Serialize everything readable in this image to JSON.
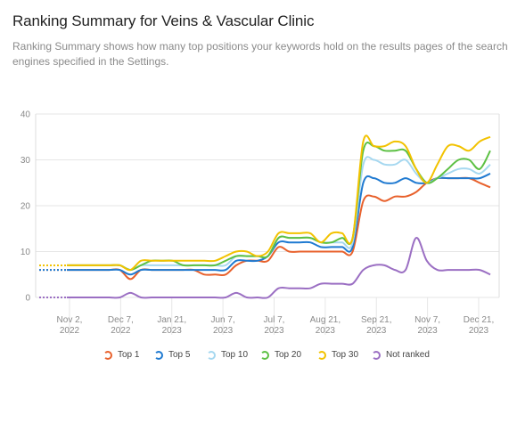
{
  "header": {
    "title": "Ranking Summary for Veins & Vascular Clinic",
    "subtitle": "Ranking Summary shows how many top positions your keywords hold on the results pages of the search engines specified in the Settings."
  },
  "chart_data": {
    "type": "line",
    "title": "Ranking Summary for Veins & Vascular Clinic",
    "xlabel": "",
    "ylabel": "",
    "ylim": [
      0,
      40
    ],
    "yticks": [
      0,
      10,
      20,
      30,
      40
    ],
    "grid": "horizontal",
    "legend_position": "bottom",
    "x_tick_labels": [
      {
        "l1": "Nov 2,",
        "l2": "2022"
      },
      {
        "l1": "Dec 7,",
        "l2": "2022"
      },
      {
        "l1": "Jan 21,",
        "l2": "2023"
      },
      {
        "l1": "Jun 7,",
        "l2": "2023"
      },
      {
        "l1": "Jul 7,",
        "l2": "2023"
      },
      {
        "l1": "Aug 21,",
        "l2": "2023"
      },
      {
        "l1": "Sep 21,",
        "l2": "2023"
      },
      {
        "l1": "Nov 7,",
        "l2": "2023"
      },
      {
        "l1": "Dec 21,",
        "l2": "2023"
      }
    ],
    "series": [
      {
        "name": "Top 1",
        "color": "#e8612c",
        "values": [
          6,
          6,
          6,
          6,
          6,
          6,
          4,
          6,
          6,
          6,
          6,
          6,
          6,
          5,
          5,
          5,
          7,
          8,
          8,
          8,
          11,
          10,
          10,
          10,
          10,
          10,
          10,
          10,
          21,
          22,
          21,
          22,
          22,
          23,
          25,
          26,
          26,
          26,
          26,
          25,
          24
        ]
      },
      {
        "name": "Top 5",
        "color": "#1f7ad1",
        "values": [
          6,
          6,
          6,
          6,
          6,
          6,
          5,
          6,
          6,
          6,
          6,
          6,
          6,
          6,
          6,
          6,
          8,
          8,
          8,
          9,
          12,
          12,
          12,
          12,
          11,
          11,
          11,
          11,
          25,
          26,
          25,
          25,
          26,
          25,
          25,
          26,
          26,
          26,
          26,
          26,
          27
        ]
      },
      {
        "name": "Top 10",
        "color": "#a6d8f0",
        "values": [
          7,
          7,
          7,
          7,
          7,
          7,
          6,
          7,
          7,
          7,
          7,
          7,
          7,
          7,
          7,
          7,
          9,
          9,
          9,
          9,
          13,
          13,
          13,
          13,
          12,
          12,
          12,
          12,
          29,
          30,
          29,
          29,
          30,
          27,
          25,
          26,
          27,
          28,
          28,
          27,
          29
        ]
      },
      {
        "name": "Top 20",
        "color": "#5cc043",
        "values": [
          7,
          7,
          7,
          7,
          7,
          7,
          6,
          7,
          8,
          8,
          8,
          7,
          7,
          7,
          7,
          8,
          9,
          9,
          9,
          9,
          13,
          13,
          13,
          13,
          12,
          12,
          13,
          13,
          32,
          33,
          32,
          32,
          32,
          28,
          25,
          26,
          28,
          30,
          30,
          28,
          32
        ]
      },
      {
        "name": "Top 30",
        "color": "#f2c200",
        "values": [
          7,
          7,
          7,
          7,
          7,
          7,
          6,
          8,
          8,
          8,
          8,
          8,
          8,
          8,
          8,
          9,
          10,
          10,
          9,
          10,
          14,
          14,
          14,
          14,
          12,
          14,
          14,
          13,
          34,
          33,
          33,
          34,
          33,
          28,
          25,
          29,
          33,
          33,
          32,
          34,
          35
        ]
      },
      {
        "name": "Not ranked",
        "color": "#9b6fc3",
        "values": [
          0,
          0,
          0,
          0,
          0,
          0,
          1,
          0,
          0,
          0,
          0,
          0,
          0,
          0,
          0,
          0,
          1,
          0,
          0,
          0,
          2,
          2,
          2,
          2,
          3,
          3,
          3,
          3,
          6,
          7,
          7,
          6,
          6,
          13,
          8,
          6,
          6,
          6,
          6,
          6,
          5
        ]
      }
    ]
  }
}
